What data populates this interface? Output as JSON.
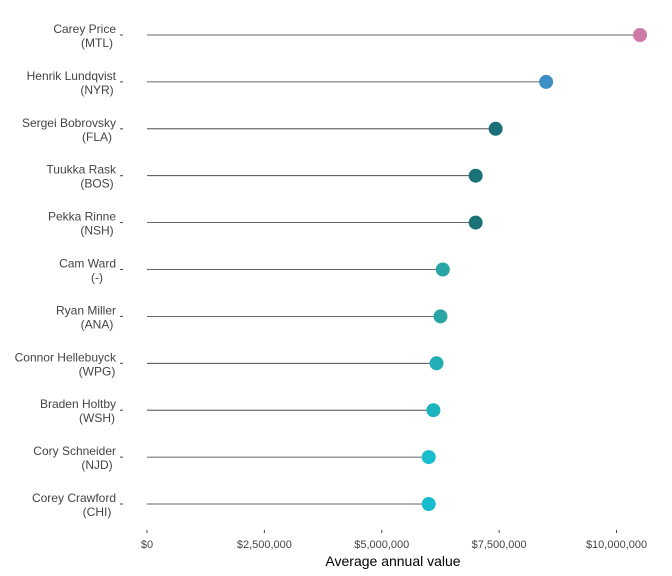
{
  "chart_data": {
    "type": "lollipop",
    "orientation": "horizontal",
    "xlabel": "Average annual value",
    "ylabel": "",
    "xlim": [
      0,
      10500000
    ],
    "x_ticks": [
      0,
      2500000,
      5000000,
      7500000,
      10000000
    ],
    "x_tick_labels": [
      "$0",
      "$2,500,000",
      "$5,000,000",
      "$7,500,000",
      "$10,000,000"
    ],
    "grid": false,
    "legend": "none",
    "categories": [
      {
        "name": "Carey Price",
        "team": "(MTL)"
      },
      {
        "name": "Henrik Lundqvist",
        "team": "(NYR)"
      },
      {
        "name": "Sergei Bobrovsky",
        "team": "(FLA)"
      },
      {
        "name": "Tuukka Rask",
        "team": "(BOS)"
      },
      {
        "name": "Pekka Rinne",
        "team": "(NSH)"
      },
      {
        "name": "Cam Ward",
        "team": "(-)"
      },
      {
        "name": "Ryan Miller",
        "team": "(ANA)"
      },
      {
        "name": "Connor Hellebuyck",
        "team": "(WPG)"
      },
      {
        "name": "Braden Holtby",
        "team": "(WSH)"
      },
      {
        "name": "Cory Schneider",
        "team": "(NJD)"
      },
      {
        "name": "Corey Crawford",
        "team": "(CHI)"
      }
    ],
    "values": [
      10500000,
      8500000,
      7425000,
      7000000,
      7000000,
      6300000,
      6250000,
      6166667,
      6100000,
      6000000,
      6000000
    ],
    "colors": [
      "#cc79a7",
      "#3d8fc4",
      "#1b6f78",
      "#1b7378",
      "#1b7378",
      "#2aa5a5",
      "#2aa5a5",
      "#22aeb5",
      "#1cb4bd",
      "#18bccc",
      "#18bccc"
    ],
    "stem_color": "#333333"
  }
}
